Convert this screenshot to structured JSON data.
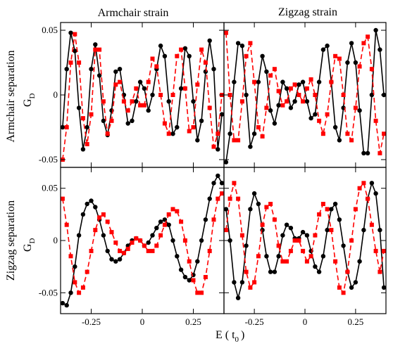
{
  "figure": {
    "col_titles": [
      "Armchair strain",
      "Zigzag strain"
    ],
    "row_titles": [
      "Armchair separation",
      "Zigzag separation"
    ],
    "ylabel_main": "G",
    "ylabel_sub": "D",
    "xlabel_main": "E ( t",
    "xlabel_sub": "0",
    "xlabel_end": ")"
  },
  "colors": {
    "black_series": "#000000",
    "red_series": "#ff0000"
  },
  "chart_data": [
    {
      "type": "line",
      "title": "Armchair strain",
      "row": "Armchair separation",
      "xlim": [
        -0.4,
        0.4
      ],
      "ylim": [
        -0.056,
        0.056
      ],
      "xticks": [
        -0.25,
        0,
        0.25
      ],
      "xtick_labels": [
        "-0.25",
        "0",
        "0.25"
      ],
      "yticks": [
        0.05,
        0,
        -0.05
      ],
      "ytick_labels": [
        "0.05",
        "0",
        "-0.05"
      ],
      "grid": false,
      "series": [
        {
          "color": "#000000",
          "style": "solid",
          "marker": "circle",
          "x": [
            -0.39,
            -0.37,
            -0.35,
            -0.33,
            -0.31,
            -0.29,
            -0.27,
            -0.25,
            -0.23,
            -0.21,
            -0.19,
            -0.17,
            -0.15,
            -0.13,
            -0.11,
            -0.09,
            -0.07,
            -0.05,
            -0.03,
            -0.01,
            0.01,
            0.03,
            0.05,
            0.07,
            0.09,
            0.11,
            0.13,
            0.15,
            0.17,
            0.19,
            0.21,
            0.23,
            0.25,
            0.27,
            0.29,
            0.31,
            0.33,
            0.35,
            0.37,
            0.39
          ],
          "y": [
            -0.025,
            0.02,
            0.048,
            0.034,
            -0.01,
            -0.042,
            -0.025,
            0.02,
            0.039,
            0.015,
            -0.02,
            -0.031,
            -0.012,
            0.018,
            0.02,
            0.0,
            -0.022,
            -0.02,
            -0.005,
            0.01,
            0.005,
            -0.012,
            0.0,
            0.02,
            0.038,
            0.03,
            -0.005,
            -0.03,
            -0.025,
            0.005,
            0.036,
            0.03,
            -0.005,
            -0.035,
            -0.02,
            0.018,
            0.042,
            0.02,
            -0.042,
            -0.015
          ]
        },
        {
          "color": "#ff0000",
          "style": "dashed",
          "marker": "square",
          "x": [
            -0.39,
            -0.37,
            -0.35,
            -0.33,
            -0.31,
            -0.29,
            -0.27,
            -0.25,
            -0.23,
            -0.21,
            -0.19,
            -0.17,
            -0.15,
            -0.13,
            -0.11,
            -0.09,
            -0.07,
            -0.05,
            -0.03,
            -0.01,
            0.01,
            0.03,
            0.05,
            0.07,
            0.09,
            0.11,
            0.13,
            0.15,
            0.17,
            0.19,
            0.21,
            0.23,
            0.25,
            0.27,
            0.29,
            0.31,
            0.33,
            0.35,
            0.37,
            0.39
          ],
          "y": [
            -0.05,
            -0.025,
            0.025,
            0.047,
            0.025,
            -0.018,
            -0.038,
            -0.015,
            0.035,
            0.035,
            -0.005,
            -0.03,
            -0.02,
            0.008,
            0.01,
            -0.005,
            -0.012,
            -0.005,
            0.005,
            -0.008,
            -0.008,
            0.01,
            0.028,
            0.022,
            0.0,
            -0.022,
            -0.03,
            0.0,
            0.03,
            0.035,
            0.005,
            -0.028,
            -0.025,
            0.008,
            0.035,
            0.025,
            -0.01,
            -0.04,
            -0.03,
            0.0
          ]
        }
      ]
    },
    {
      "type": "line",
      "title": "Zigzag strain",
      "row": "Armchair separation",
      "xlim": [
        -0.4,
        0.4
      ],
      "ylim": [
        -0.056,
        0.056
      ],
      "xticks": [
        -0.25,
        0,
        0.25
      ],
      "xtick_labels": [
        "-0.25",
        "0",
        "0.25"
      ],
      "yticks": [
        0.05,
        0,
        -0.05
      ],
      "ytick_labels": [
        "0.05",
        "0",
        "-0.05"
      ],
      "grid": false,
      "series": [
        {
          "color": "#000000",
          "style": "solid",
          "marker": "circle",
          "x": [
            -0.39,
            -0.37,
            -0.35,
            -0.33,
            -0.31,
            -0.29,
            -0.27,
            -0.25,
            -0.23,
            -0.21,
            -0.19,
            -0.17,
            -0.15,
            -0.13,
            -0.11,
            -0.09,
            -0.07,
            -0.05,
            -0.03,
            -0.01,
            0.01,
            0.03,
            0.05,
            0.07,
            0.09,
            0.11,
            0.13,
            0.15,
            0.17,
            0.19,
            0.21,
            0.23,
            0.25,
            0.27,
            0.29,
            0.31,
            0.33,
            0.35,
            0.37,
            0.39
          ],
          "y": [
            -0.052,
            -0.03,
            0.01,
            0.04,
            0.038,
            0.0,
            -0.04,
            -0.03,
            0.01,
            0.03,
            0.018,
            -0.012,
            -0.022,
            -0.008,
            0.01,
            0.005,
            -0.01,
            -0.005,
            0.008,
            0.01,
            -0.005,
            -0.018,
            -0.015,
            0.01,
            0.035,
            0.038,
            0.01,
            -0.025,
            -0.035,
            -0.01,
            0.025,
            0.04,
            0.025,
            -0.012,
            -0.045,
            -0.045,
            0.0,
            0.05,
            0.035,
            0.0
          ]
        },
        {
          "color": "#ff0000",
          "style": "dashed",
          "marker": "square",
          "x": [
            -0.39,
            -0.37,
            -0.35,
            -0.33,
            -0.31,
            -0.29,
            -0.27,
            -0.25,
            -0.23,
            -0.21,
            -0.19,
            -0.17,
            -0.15,
            -0.13,
            -0.11,
            -0.09,
            -0.07,
            -0.05,
            -0.03,
            -0.01,
            0.01,
            0.03,
            0.05,
            0.07,
            0.09,
            0.11,
            0.13,
            0.15,
            0.17,
            0.19,
            0.21,
            0.23,
            0.25,
            0.27,
            0.29,
            0.31,
            0.33,
            0.35,
            0.37,
            0.39
          ],
          "y": [
            0.048,
            0.0,
            -0.035,
            -0.035,
            -0.005,
            0.03,
            0.04,
            0.01,
            -0.025,
            -0.032,
            -0.01,
            0.015,
            0.02,
            0.003,
            -0.008,
            -0.005,
            0.005,
            0.008,
            0.0,
            -0.005,
            0.005,
            0.012,
            0.0,
            -0.02,
            -0.03,
            -0.015,
            0.01,
            0.03,
            0.028,
            0.0,
            -0.03,
            -0.035,
            -0.01,
            0.022,
            0.04,
            0.045,
            0.02,
            -0.02,
            -0.045,
            -0.03
          ]
        }
      ]
    },
    {
      "type": "line",
      "title": "Armchair strain",
      "row": "Zigzag separation",
      "xlim": [
        -0.4,
        0.4
      ],
      "ylim": [
        -0.07,
        0.07
      ],
      "xticks": [
        -0.25,
        0,
        0.25
      ],
      "xtick_labels": [
        "-0.25",
        "0",
        "0.25"
      ],
      "yticks": [
        0.05,
        0,
        -0.05
      ],
      "ytick_labels": [
        "0.05",
        "0",
        "-0.05"
      ],
      "grid": false,
      "series": [
        {
          "color": "#000000",
          "style": "solid",
          "marker": "circle",
          "x": [
            -0.39,
            -0.37,
            -0.35,
            -0.33,
            -0.31,
            -0.29,
            -0.27,
            -0.25,
            -0.23,
            -0.21,
            -0.19,
            -0.17,
            -0.15,
            -0.13,
            -0.11,
            -0.09,
            -0.07,
            -0.05,
            -0.03,
            -0.01,
            0.01,
            0.03,
            0.05,
            0.07,
            0.09,
            0.11,
            0.13,
            0.15,
            0.17,
            0.19,
            0.21,
            0.23,
            0.25,
            0.27,
            0.29,
            0.31,
            0.33,
            0.35,
            0.37,
            0.39
          ],
          "y": [
            -0.06,
            -0.062,
            -0.05,
            -0.025,
            0.005,
            0.025,
            0.035,
            0.038,
            0.032,
            0.02,
            0.005,
            -0.01,
            -0.018,
            -0.02,
            -0.018,
            -0.012,
            -0.005,
            0.0,
            0.002,
            0.0,
            -0.005,
            -0.002,
            0.005,
            0.012,
            0.018,
            0.02,
            0.015,
            0.0,
            -0.015,
            -0.028,
            -0.035,
            -0.038,
            -0.033,
            -0.02,
            0.0,
            0.02,
            0.04,
            0.055,
            0.062,
            0.055
          ]
        },
        {
          "color": "#ff0000",
          "style": "dashed",
          "marker": "square",
          "x": [
            -0.39,
            -0.37,
            -0.35,
            -0.33,
            -0.31,
            -0.29,
            -0.27,
            -0.25,
            -0.23,
            -0.21,
            -0.19,
            -0.17,
            -0.15,
            -0.13,
            -0.11,
            -0.09,
            -0.07,
            -0.05,
            -0.03,
            -0.01,
            0.01,
            0.03,
            0.05,
            0.07,
            0.09,
            0.11,
            0.13,
            0.15,
            0.17,
            0.19,
            0.21,
            0.23,
            0.25,
            0.27,
            0.29,
            0.31,
            0.33,
            0.35,
            0.37,
            0.39
          ],
          "y": [
            0.04,
            0.015,
            -0.015,
            -0.04,
            -0.05,
            -0.045,
            -0.03,
            -0.01,
            0.01,
            0.022,
            0.025,
            0.018,
            0.008,
            -0.002,
            -0.01,
            -0.012,
            -0.008,
            -0.002,
            0.002,
            0.0,
            -0.005,
            -0.01,
            -0.01,
            -0.005,
            0.005,
            0.015,
            0.025,
            0.03,
            0.028,
            0.018,
            0.0,
            -0.02,
            -0.038,
            -0.05,
            -0.05,
            -0.035,
            -0.01,
            0.02,
            0.04,
            0.045
          ]
        }
      ]
    },
    {
      "type": "line",
      "title": "Zigzag strain",
      "row": "Zigzag separation",
      "xlim": [
        -0.4,
        0.4
      ],
      "ylim": [
        -0.07,
        0.07
      ],
      "xticks": [
        -0.25,
        0,
        0.25
      ],
      "xtick_labels": [
        "-0.25",
        "0",
        "0.25"
      ],
      "yticks": [
        0.05,
        0,
        -0.05
      ],
      "ytick_labels": [
        "0.05",
        "0",
        "-0.05"
      ],
      "grid": false,
      "series": [
        {
          "color": "#000000",
          "style": "solid",
          "marker": "circle",
          "x": [
            -0.39,
            -0.37,
            -0.35,
            -0.33,
            -0.31,
            -0.29,
            -0.27,
            -0.25,
            -0.23,
            -0.21,
            -0.19,
            -0.17,
            -0.15,
            -0.13,
            -0.11,
            -0.09,
            -0.07,
            -0.05,
            -0.03,
            -0.01,
            0.01,
            0.03,
            0.05,
            0.07,
            0.09,
            0.11,
            0.13,
            0.15,
            0.17,
            0.19,
            0.21,
            0.23,
            0.25,
            0.27,
            0.29,
            0.31,
            0.33,
            0.35,
            0.37,
            0.39
          ],
          "y": [
            0.03,
            0.0,
            -0.04,
            -0.055,
            -0.04,
            -0.005,
            0.03,
            0.045,
            0.035,
            0.01,
            -0.015,
            -0.03,
            -0.03,
            -0.015,
            0.005,
            0.015,
            0.012,
            0.002,
            0.002,
            0.008,
            0.005,
            -0.01,
            -0.025,
            -0.03,
            -0.015,
            0.01,
            0.03,
            0.035,
            0.02,
            -0.005,
            -0.03,
            -0.045,
            -0.04,
            -0.02,
            0.01,
            0.04,
            0.055,
            0.045,
            0.01,
            -0.045
          ]
        },
        {
          "color": "#ff0000",
          "style": "dashed",
          "marker": "square",
          "x": [
            -0.39,
            -0.37,
            -0.35,
            -0.33,
            -0.31,
            -0.29,
            -0.27,
            -0.25,
            -0.23,
            -0.21,
            -0.19,
            -0.17,
            -0.15,
            -0.13,
            -0.11,
            -0.09,
            -0.07,
            -0.05,
            -0.03,
            -0.01,
            0.01,
            0.03,
            0.05,
            0.07,
            0.09,
            0.11,
            0.13,
            0.15,
            0.17,
            0.19,
            0.21,
            0.23,
            0.25,
            0.27,
            0.29,
            0.31,
            0.33,
            0.35,
            0.37,
            0.39
          ],
          "y": [
            0.01,
            0.04,
            0.055,
            0.04,
            0.005,
            -0.03,
            -0.045,
            -0.04,
            -0.015,
            0.015,
            0.032,
            0.035,
            0.02,
            -0.005,
            -0.02,
            -0.02,
            -0.01,
            0.0,
            0.0,
            -0.01,
            -0.02,
            -0.015,
            0.005,
            0.025,
            0.035,
            0.03,
            0.01,
            -0.02,
            -0.045,
            -0.05,
            -0.03,
            0.0,
            0.03,
            0.05,
            0.055,
            0.04,
            0.015,
            -0.01,
            -0.03,
            -0.01
          ]
        }
      ]
    }
  ]
}
